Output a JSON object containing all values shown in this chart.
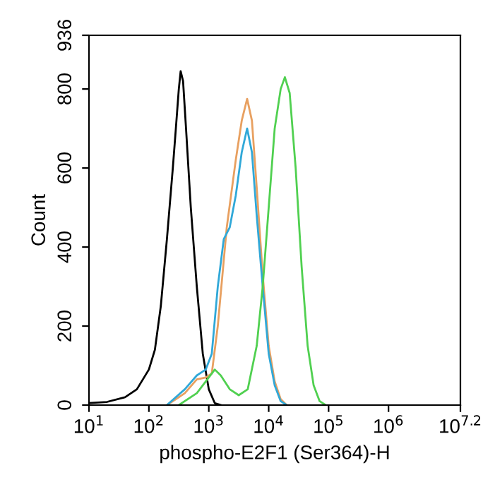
{
  "chart_data": {
    "type": "line",
    "xlabel": "phospho-E2F1 (Ser364)-H",
    "ylabel": "Count",
    "log": "x",
    "xlim": [
      10,
      15848932
    ],
    "xticks": [
      {
        "value": 10,
        "label": "10$^{1}$"
      },
      {
        "value": 100,
        "label": "10$^{2}$"
      },
      {
        "value": 1000,
        "label": "10$^{3}$"
      },
      {
        "value": 10000,
        "label": "10$^{4}$"
      },
      {
        "value": 100000,
        "label": "10$^{5}$"
      },
      {
        "value": 1000000,
        "label": "10$^{6}$"
      },
      {
        "value": 15848932,
        "label": "10$^{7.2}$"
      }
    ],
    "ylim": [
      0,
      936
    ],
    "yticks": [
      0,
      200,
      400,
      600,
      800,
      936
    ],
    "grid": false,
    "marker": "none",
    "line_style": "solid",
    "series": [
      {
        "color": "#000000",
        "x": [
          10,
          20,
          40,
          63,
          100,
          126,
          158,
          200,
          251,
          282,
          316,
          339,
          372,
          417,
          501,
          631,
          794,
          1000,
          1259,
          1585
        ],
        "values": [
          5,
          8,
          20,
          40,
          90,
          140,
          250,
          420,
          600,
          700,
          800,
          845,
          820,
          700,
          500,
          300,
          130,
          40,
          5,
          0
        ]
      },
      {
        "color": "#e8a060",
        "x": [
          200,
          398,
          631,
          891,
          1122,
          1413,
          1995,
          2818,
          3548,
          4365,
          5248,
          6310,
          7943,
          10000,
          12589,
          15849,
          19953
        ],
        "values": [
          0,
          30,
          65,
          70,
          80,
          200,
          450,
          620,
          720,
          775,
          720,
          550,
          330,
          150,
          60,
          15,
          0
        ]
      },
      {
        "color": "#30a8d8",
        "x": [
          200,
          398,
          631,
          891,
          1122,
          1413,
          1778,
          2239,
          2818,
          3548,
          4365,
          5248,
          6310,
          7943,
          10000,
          12589,
          15849,
          19953
        ],
        "values": [
          0,
          40,
          75,
          90,
          130,
          300,
          420,
          450,
          530,
          640,
          700,
          640,
          480,
          300,
          130,
          50,
          10,
          0
        ]
      },
      {
        "color": "#50d050",
        "x": [
          316,
          631,
          1000,
          1259,
          1585,
          2239,
          3162,
          4467,
          6310,
          7943,
          10000,
          12589,
          15849,
          18621,
          22387,
          28184,
          35481,
          44668,
          56234,
          70795,
          89125
        ],
        "values": [
          0,
          30,
          70,
          90,
          75,
          40,
          25,
          40,
          150,
          300,
          500,
          700,
          800,
          830,
          790,
          600,
          350,
          150,
          50,
          10,
          0
        ]
      }
    ]
  }
}
